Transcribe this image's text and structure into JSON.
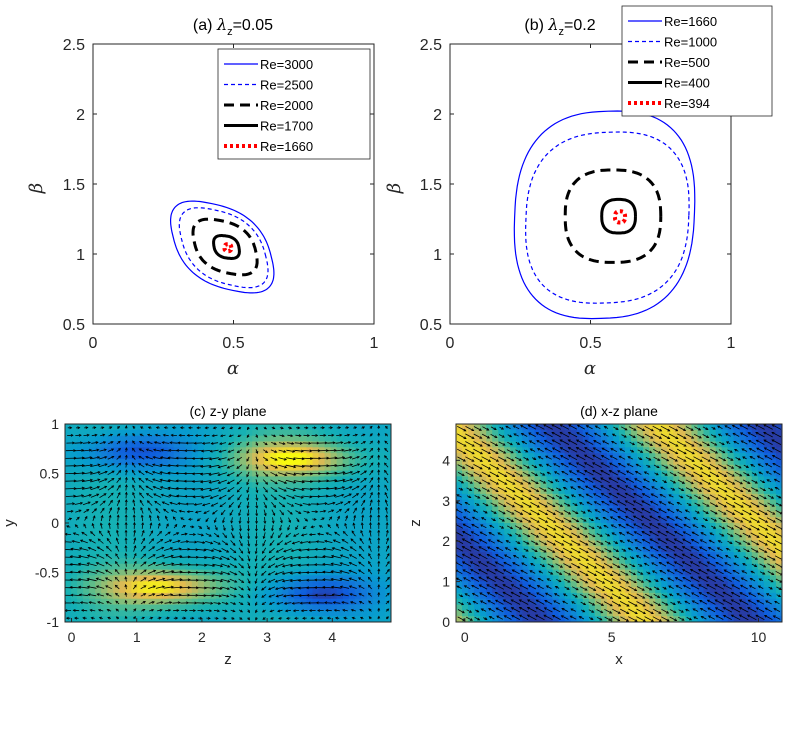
{
  "chart_data": [
    {
      "type": "line",
      "title_prefix": "(a)",
      "title_symbol": "λ",
      "title_sub": "z",
      "title_suffix": "=0.05",
      "xlabel": "α",
      "ylabel": "β",
      "xlim": [
        0,
        1
      ],
      "ylim": [
        0.5,
        2.5
      ],
      "xticks": [
        "0",
        "0.5",
        "1"
      ],
      "yticks": [
        "0.5",
        "1",
        "1.5",
        "2",
        "2.5"
      ],
      "legend_position": "top-right",
      "series": [
        {
          "name": "Re=3000",
          "color": "#0000ff",
          "style": "solid-thin",
          "center": [
            0.46,
            1.05
          ],
          "radius_alpha": 0.175,
          "radius_beta": 0.31,
          "tilt": -0.35
        },
        {
          "name": "Re=2500",
          "color": "#0000ff",
          "style": "dashed-thin",
          "center": [
            0.465,
            1.045
          ],
          "radius_alpha": 0.15,
          "radius_beta": 0.27,
          "tilt": -0.35
        },
        {
          "name": "Re=2000",
          "color": "#000000",
          "style": "dashed-thick",
          "center": [
            0.47,
            1.05
          ],
          "radius_alpha": 0.11,
          "radius_beta": 0.19,
          "tilt": -0.3
        },
        {
          "name": "Re=1700",
          "color": "#000000",
          "style": "solid-thick",
          "center": [
            0.475,
            1.05
          ],
          "radius_alpha": 0.045,
          "radius_beta": 0.08,
          "tilt": -0.2
        },
        {
          "name": "Re=1660",
          "color": "#ff0000",
          "style": "dotted-thick",
          "center": [
            0.48,
            1.045
          ],
          "radius_alpha": 0.012,
          "radius_beta": 0.025,
          "tilt": 0
        }
      ]
    },
    {
      "type": "line",
      "title_prefix": "(b)",
      "title_symbol": "λ",
      "title_sub": "z",
      "title_suffix": "=0.2",
      "xlabel": "α",
      "ylabel": "β",
      "xlim": [
        0,
        1
      ],
      "ylim": [
        0.5,
        2.5
      ],
      "xticks": [
        "0",
        "0.5",
        "1"
      ],
      "yticks": [
        "0.5",
        "1",
        "1.5",
        "2",
        "2.5"
      ],
      "legend_position": "top-right",
      "series": [
        {
          "name": "Re=1660",
          "color": "#0000ff",
          "style": "solid-thin",
          "center": [
            0.55,
            1.28
          ],
          "radius_alpha": 0.32,
          "radius_beta": 0.74,
          "tilt": 0.05
        },
        {
          "name": "Re=1000",
          "color": "#0000ff",
          "style": "dashed-thin",
          "center": [
            0.56,
            1.26
          ],
          "radius_alpha": 0.29,
          "radius_beta": 0.61,
          "tilt": 0.05
        },
        {
          "name": "Re=500",
          "color": "#000000",
          "style": "dashed-thick",
          "center": [
            0.58,
            1.27
          ],
          "radius_alpha": 0.17,
          "radius_beta": 0.33,
          "tilt": 0
        },
        {
          "name": "Re=400",
          "color": "#000000",
          "style": "solid-thick",
          "center": [
            0.6,
            1.27
          ],
          "radius_alpha": 0.06,
          "radius_beta": 0.12,
          "tilt": 0
        },
        {
          "name": "Re=394",
          "color": "#ff0000",
          "style": "dotted-thick",
          "center": [
            0.605,
            1.265
          ],
          "radius_alpha": 0.018,
          "radius_beta": 0.04,
          "tilt": 0
        }
      ]
    },
    {
      "type": "heatmap",
      "title": "(c) z-y plane",
      "xlabel": "z",
      "ylabel": "y",
      "xlim": [
        -0.1,
        4.9
      ],
      "ylim": [
        -1,
        1
      ],
      "xticks": [
        "0",
        "1",
        "2",
        "3",
        "4"
      ],
      "yticks": [
        "-1",
        "-0.5",
        "0",
        "0.5",
        "1"
      ],
      "colormap": "parula",
      "quiver": true
    },
    {
      "type": "heatmap",
      "title": "(d) x-z plane",
      "xlabel": "x",
      "ylabel": "z",
      "xlim": [
        -0.3,
        10.8
      ],
      "ylim": [
        0,
        4.9
      ],
      "xticks": [
        "0",
        "5",
        "10"
      ],
      "yticks": [
        "0",
        "1",
        "2",
        "3",
        "4"
      ],
      "colormap": "parula",
      "quiver": true
    }
  ]
}
